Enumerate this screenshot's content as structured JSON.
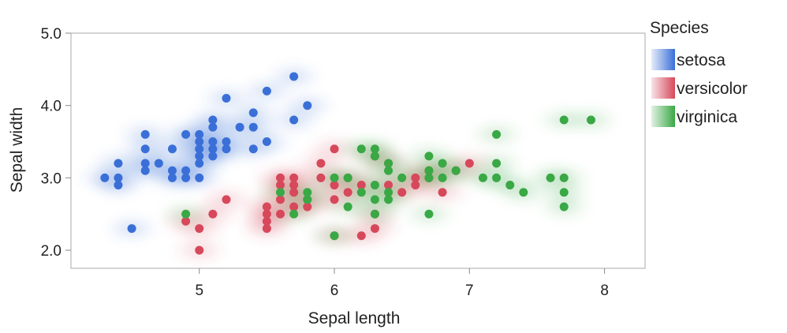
{
  "chart_data": {
    "type": "scatter",
    "xlabel": "Sepal length",
    "ylabel": "Sepal width",
    "xlim": [
      4.05,
      8.3
    ],
    "ylim": [
      1.75,
      5.0
    ],
    "xticks": [
      5,
      6,
      7,
      8
    ],
    "yticks": [
      2.0,
      3.0,
      4.0,
      5.0
    ],
    "ytick_labels": [
      "2.0",
      "3.0",
      "4.0",
      "5.0"
    ],
    "overlay": "density contours (shaded) per species",
    "legend": {
      "title": "Species",
      "placement": "right"
    },
    "series": [
      {
        "name": "setosa",
        "color": "#3a6fd8",
        "points": [
          [
            4.3,
            3.0
          ],
          [
            4.4,
            2.9
          ],
          [
            4.4,
            3.0
          ],
          [
            4.4,
            3.2
          ],
          [
            4.5,
            2.3
          ],
          [
            4.6,
            3.1
          ],
          [
            4.6,
            3.2
          ],
          [
            4.6,
            3.4
          ],
          [
            4.6,
            3.6
          ],
          [
            4.7,
            3.2
          ],
          [
            4.8,
            3.0
          ],
          [
            4.8,
            3.1
          ],
          [
            4.8,
            3.4
          ],
          [
            4.9,
            3.0
          ],
          [
            4.9,
            3.1
          ],
          [
            4.9,
            3.6
          ],
          [
            5.0,
            3.0
          ],
          [
            5.0,
            3.2
          ],
          [
            5.0,
            3.3
          ],
          [
            5.0,
            3.4
          ],
          [
            5.0,
            3.5
          ],
          [
            5.0,
            3.6
          ],
          [
            5.1,
            3.3
          ],
          [
            5.1,
            3.4
          ],
          [
            5.1,
            3.5
          ],
          [
            5.1,
            3.7
          ],
          [
            5.1,
            3.8
          ],
          [
            5.2,
            3.4
          ],
          [
            5.2,
            3.5
          ],
          [
            5.2,
            4.1
          ],
          [
            5.3,
            3.7
          ],
          [
            5.4,
            3.4
          ],
          [
            5.4,
            3.7
          ],
          [
            5.4,
            3.9
          ],
          [
            5.5,
            3.5
          ],
          [
            5.5,
            4.2
          ],
          [
            5.7,
            3.8
          ],
          [
            5.7,
            4.4
          ],
          [
            5.8,
            4.0
          ]
        ]
      },
      {
        "name": "versicolor",
        "color": "#d7485b",
        "points": [
          [
            4.9,
            2.4
          ],
          [
            5.0,
            2.0
          ],
          [
            5.0,
            2.3
          ],
          [
            5.1,
            2.5
          ],
          [
            5.2,
            2.7
          ],
          [
            5.5,
            2.3
          ],
          [
            5.5,
            2.4
          ],
          [
            5.5,
            2.5
          ],
          [
            5.5,
            2.6
          ],
          [
            5.6,
            2.5
          ],
          [
            5.6,
            2.7
          ],
          [
            5.6,
            2.9
          ],
          [
            5.6,
            3.0
          ],
          [
            5.7,
            2.6
          ],
          [
            5.7,
            2.8
          ],
          [
            5.7,
            2.9
          ],
          [
            5.7,
            3.0
          ],
          [
            5.8,
            2.6
          ],
          [
            5.8,
            2.7
          ],
          [
            5.9,
            3.0
          ],
          [
            5.9,
            3.2
          ],
          [
            6.0,
            2.2
          ],
          [
            6.0,
            2.7
          ],
          [
            6.0,
            2.9
          ],
          [
            6.0,
            3.4
          ],
          [
            6.1,
            2.8
          ],
          [
            6.1,
            3.0
          ],
          [
            6.2,
            2.2
          ],
          [
            6.2,
            2.9
          ],
          [
            6.3,
            2.3
          ],
          [
            6.3,
            2.5
          ],
          [
            6.3,
            3.3
          ],
          [
            6.4,
            2.9
          ],
          [
            6.4,
            3.2
          ],
          [
            6.5,
            2.8
          ],
          [
            6.6,
            2.9
          ],
          [
            6.6,
            3.0
          ],
          [
            6.7,
            3.0
          ],
          [
            6.7,
            3.1
          ],
          [
            6.8,
            2.8
          ],
          [
            6.9,
            3.1
          ],
          [
            7.0,
            3.2
          ]
        ]
      },
      {
        "name": "virginica",
        "color": "#39a845",
        "points": [
          [
            4.9,
            2.5
          ],
          [
            5.6,
            2.8
          ],
          [
            5.7,
            2.5
          ],
          [
            5.8,
            2.7
          ],
          [
            5.8,
            2.8
          ],
          [
            6.0,
            2.2
          ],
          [
            6.0,
            3.0
          ],
          [
            6.1,
            2.6
          ],
          [
            6.1,
            3.0
          ],
          [
            6.2,
            2.8
          ],
          [
            6.2,
            3.4
          ],
          [
            6.3,
            2.5
          ],
          [
            6.3,
            2.7
          ],
          [
            6.3,
            2.9
          ],
          [
            6.3,
            3.3
          ],
          [
            6.3,
            3.4
          ],
          [
            6.4,
            2.7
          ],
          [
            6.4,
            2.8
          ],
          [
            6.4,
            3.1
          ],
          [
            6.4,
            3.2
          ],
          [
            6.5,
            3.0
          ],
          [
            6.7,
            2.5
          ],
          [
            6.7,
            3.0
          ],
          [
            6.7,
            3.1
          ],
          [
            6.7,
            3.3
          ],
          [
            6.8,
            3.0
          ],
          [
            6.8,
            3.2
          ],
          [
            6.9,
            3.1
          ],
          [
            7.1,
            3.0
          ],
          [
            7.2,
            3.0
          ],
          [
            7.2,
            3.2
          ],
          [
            7.2,
            3.6
          ],
          [
            7.3,
            2.9
          ],
          [
            7.4,
            2.8
          ],
          [
            7.6,
            3.0
          ],
          [
            7.7,
            2.6
          ],
          [
            7.7,
            2.8
          ],
          [
            7.7,
            3.0
          ],
          [
            7.7,
            3.8
          ],
          [
            7.9,
            3.8
          ]
        ]
      }
    ]
  }
}
